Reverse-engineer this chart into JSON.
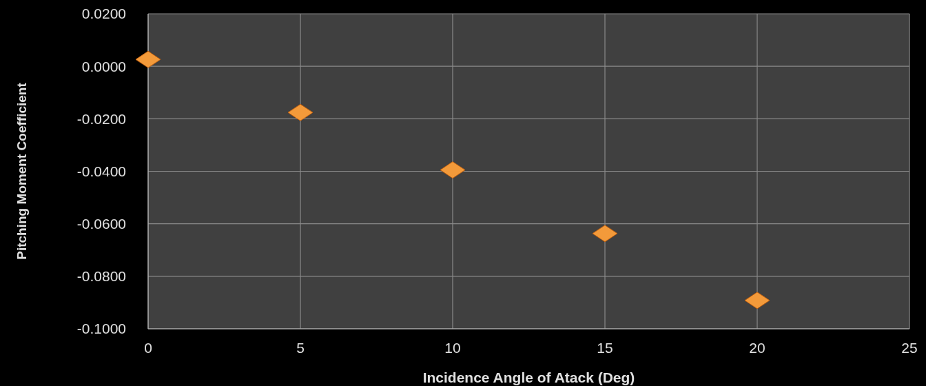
{
  "chart_data": {
    "type": "scatter",
    "xlabel": "Incidence Angle of Atack (Deg)",
    "ylabel": "Pitching Moment Coefficient",
    "x": [
      0,
      5,
      10,
      15,
      20
    ],
    "series": [
      {
        "color": "#f39a3a",
        "values": [
          0.0026,
          -0.0176,
          -0.0395,
          -0.0637,
          -0.0892
        ]
      }
    ],
    "xlim": [
      0,
      25
    ],
    "xticks": [
      0,
      5,
      10,
      15,
      20,
      25
    ],
    "ylim": [
      -0.1,
      0.02
    ],
    "yticks": [
      {
        "value": 0.02,
        "label": "0.0200"
      },
      {
        "value": 0,
        "label": "0.0000"
      },
      {
        "value": -0.02,
        "label": "-0.0200"
      },
      {
        "value": -0.04,
        "label": "-0.0400"
      },
      {
        "value": -0.06,
        "label": "-0.0600"
      },
      {
        "value": -0.08,
        "label": "-0.0800"
      },
      {
        "value": -0.1,
        "label": "-0.1000"
      }
    ],
    "grid": true,
    "marker": "diamond"
  }
}
